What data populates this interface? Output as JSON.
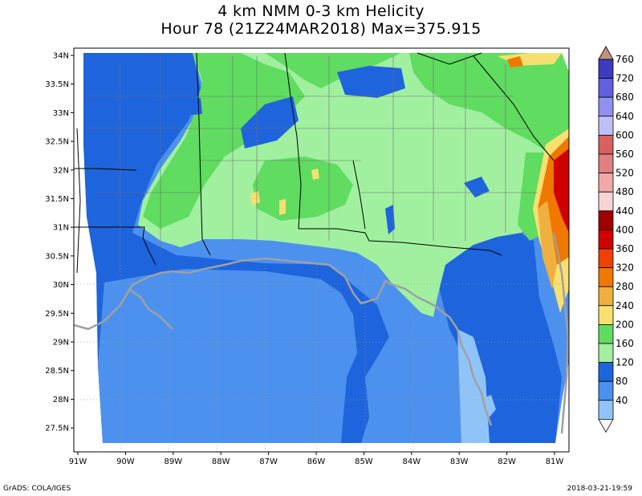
{
  "title": {
    "line1": "4 km NMM 0-3 km Helicity",
    "line2": "Hour 78 (21Z24MAR2018) Max=375.915"
  },
  "footer": {
    "left": "GrADS: COLA/IGES",
    "right": "2018-03-21-19:59"
  },
  "axes": {
    "lat_labels": [
      "34N",
      "33.5N",
      "33N",
      "32.5N",
      "32N",
      "31.5N",
      "31N",
      "30.5N",
      "30N",
      "29.5N",
      "29N",
      "28.5N",
      "28N",
      "27.5N"
    ],
    "lon_labels": [
      "91W",
      "90W",
      "89W",
      "88W",
      "87W",
      "86W",
      "85W",
      "84W",
      "83W",
      "82W",
      "81W"
    ],
    "lat_range": [
      27.2,
      34.1
    ],
    "lon_range": [
      -91.0,
      -80.75
    ]
  },
  "colorbar": {
    "labels": [
      "760",
      "720",
      "680",
      "640",
      "600",
      "560",
      "520",
      "480",
      "440",
      "400",
      "360",
      "320",
      "280",
      "240",
      "200",
      "160",
      "120",
      "80",
      "40"
    ],
    "colors": [
      "#c09080",
      "#3c3cc0",
      "#6060e0",
      "#9090f0",
      "#c0c0f8",
      "#d86060",
      "#e08080",
      "#f0a8a8",
      "#f8d4d4",
      "#a00000",
      "#d00000",
      "#f04000",
      "#f07800",
      "#f0b040",
      "#f8e070",
      "#60dc60",
      "#a0f0a0",
      "#1e64dc",
      "#4a90f0",
      "#90c4f8"
    ],
    "tip_color": "#ffffff"
  },
  "fill_colors": {
    "ocean": "#4d91ee",
    "deep": "#1e64dc",
    "green_light": "#a0f0a0",
    "green_mid": "#60dc60",
    "yellow": "#f8e070",
    "orange": "#f07800",
    "orange_light": "#f0b040",
    "red": "#d00000"
  }
}
